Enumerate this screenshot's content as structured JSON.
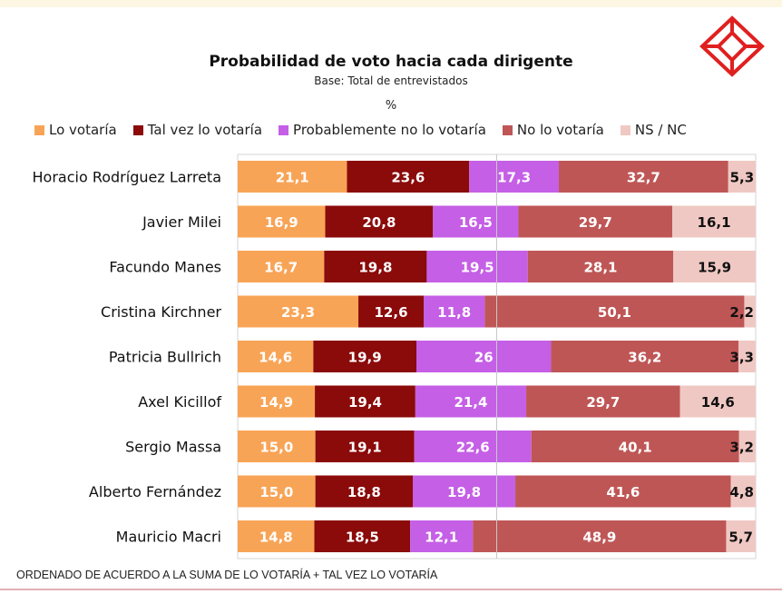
{
  "title": "Probabilidad de voto hacia cada dirigente",
  "subtitle": "Base: Total de entrevistados",
  "unit": "%",
  "footer": "ORDENADO DE ACUERDO A LA SUMA DE LO VOTARÍA  + TAL VEZ LO VOTARÍA",
  "colors": {
    "lo_votaria": "#f8a456",
    "tal_vez": "#8b0a0a",
    "probablemente_no": "#c55fe6",
    "no_lo_votaria": "#bf5656",
    "ns_nc": "#f0c8c3",
    "logo": "#e02020"
  },
  "chart_data": {
    "type": "bar",
    "orientation": "horizontal",
    "stacked": true,
    "xlim": [
      0,
      100
    ],
    "categories": [
      "Horacio Rodríguez Larreta",
      "Javier Milei",
      "Facundo Manes",
      "Cristina Kirchner",
      "Patricia Bullrich",
      "Axel Kicillof",
      "Sergio Massa",
      "Alberto Fernández",
      "Mauricio Macri"
    ],
    "series": [
      {
        "name": "Lo votaría",
        "labels": [
          "21,1",
          "16,9",
          "16,7",
          "23,3",
          "14,6",
          "14,9",
          "15,0",
          "15,0",
          "14,8"
        ],
        "values": [
          21.1,
          16.9,
          16.7,
          23.3,
          14.6,
          14.9,
          15.0,
          15.0,
          14.8
        ]
      },
      {
        "name": "Tal vez lo votaría",
        "labels": [
          "23,6",
          "20,8",
          "19,8",
          "12,6",
          "19,9",
          "19,4",
          "19,1",
          "18,8",
          "18,5"
        ],
        "values": [
          23.6,
          20.8,
          19.8,
          12.6,
          19.9,
          19.4,
          19.1,
          18.8,
          18.5
        ]
      },
      {
        "name": "Probablemente no lo votaría",
        "labels": [
          "17,3",
          "16,5",
          "19,5",
          "11,8",
          "26",
          "21,4",
          "22,6",
          "19,8",
          "12,1"
        ],
        "values": [
          17.3,
          16.5,
          19.5,
          11.8,
          26,
          21.4,
          22.6,
          19.8,
          12.1
        ]
      },
      {
        "name": "No lo votaría",
        "labels": [
          "32,7",
          "29,7",
          "28,1",
          "50,1",
          "36,2",
          "29,7",
          "40,1",
          "41,6",
          "48,9"
        ],
        "values": [
          32.7,
          29.7,
          28.1,
          50.1,
          36.2,
          29.7,
          40.1,
          41.6,
          48.9
        ]
      },
      {
        "name": "NS / NC",
        "labels": [
          "5,3",
          "16,1",
          "15,9",
          "2,2",
          "3,3",
          "14,6",
          "3,2",
          "4,8",
          "5,7"
        ],
        "values": [
          5.3,
          16.1,
          15.9,
          2.2,
          3.3,
          14.6,
          3.2,
          4.8,
          5.7
        ]
      }
    ]
  }
}
